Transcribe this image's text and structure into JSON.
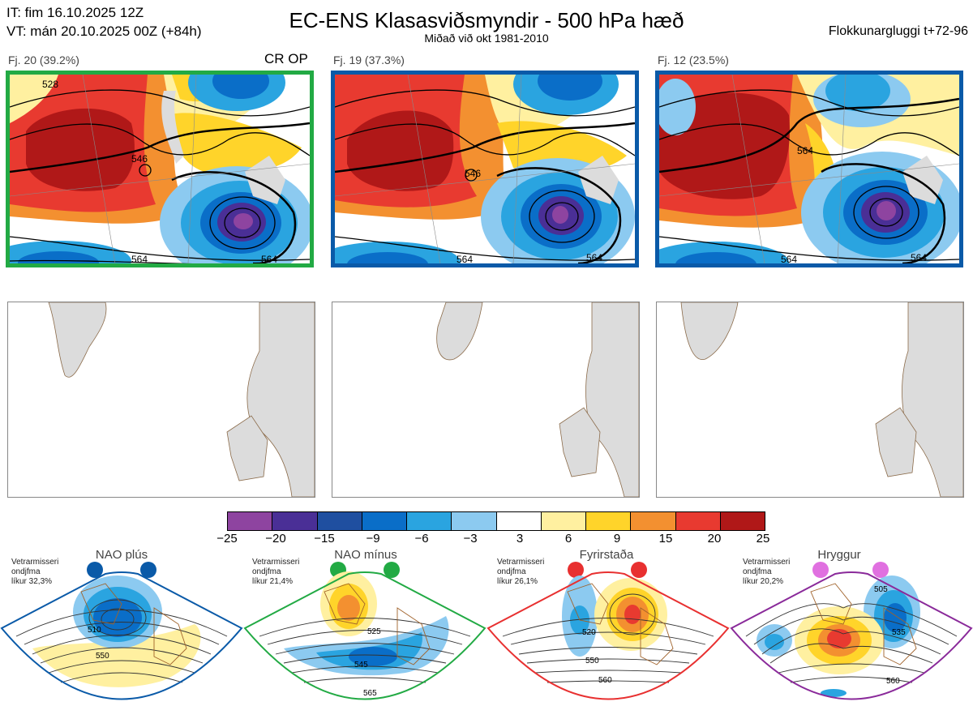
{
  "header": {
    "it": "IT: fim 16.10.2025 12Z",
    "vt": "VT: mán 20.10.2025 00Z  (+84h)",
    "title": "EC-ENS Klasasviðsmyndir - 500 hPa hæð",
    "subtitle": "Miðað við okt 1981-2010",
    "window": "Flokkunargluggi t+72-96"
  },
  "clusters": [
    {
      "label": "Fj. 20 (39.2%)",
      "tag": "CR OP",
      "border_color": "#22aa44"
    },
    {
      "label": "Fj. 19 (37.3%)",
      "tag": "",
      "border_color": "#0a5aa8"
    },
    {
      "label": "Fj. 12 (23.5%)",
      "tag": "",
      "border_color": "#0a5aa8"
    }
  ],
  "contour_labels": [
    "528",
    "546",
    "564"
  ],
  "colorbar": {
    "ticks": [
      "−25",
      "−20",
      "−15",
      "−9",
      "−6",
      "−3",
      "3",
      "6",
      "9",
      "15",
      "20",
      "25"
    ],
    "colors": [
      "#8e44a0",
      "#4a2f96",
      "#1f4fa0",
      "#0a6ec8",
      "#2aa4e0",
      "#8ccaf0",
      "#ffffff",
      "#fff0a0",
      "#ffd42a",
      "#f39030",
      "#e83a30",
      "#b01818"
    ]
  },
  "regimes": [
    {
      "name": "NAO plús",
      "note1": "Vetrarmisseri",
      "note2": "ondjfma",
      "note3": "líkur 32,3%",
      "dot_color": "#0a5aa8",
      "border_color": "#0a5aa8",
      "labels": [
        "510",
        "550"
      ]
    },
    {
      "name": "NAO mínus",
      "note1": "Vetrarmisseri",
      "note2": "ondjfma",
      "note3": "líkur 21,4%",
      "dot_color": "#22aa44",
      "border_color": "#22aa44",
      "labels": [
        "525",
        "545",
        "565"
      ]
    },
    {
      "name": "Fyrirstaða",
      "note1": "Vetrarmisseri",
      "note2": "ondjfma",
      "note3": "líkur 26,1%",
      "dot_color": "#e83030",
      "border_color": "#e83030",
      "labels": [
        "520",
        "550",
        "560"
      ]
    },
    {
      "name": "Hryggur",
      "note1": "Vetrarmisseri",
      "note2": "ondjfma",
      "note3": "líkur 20,2%",
      "dot_color": "#e070e0",
      "border_color": "#8a2a9a",
      "labels": [
        "505",
        "535",
        "560"
      ]
    }
  ]
}
